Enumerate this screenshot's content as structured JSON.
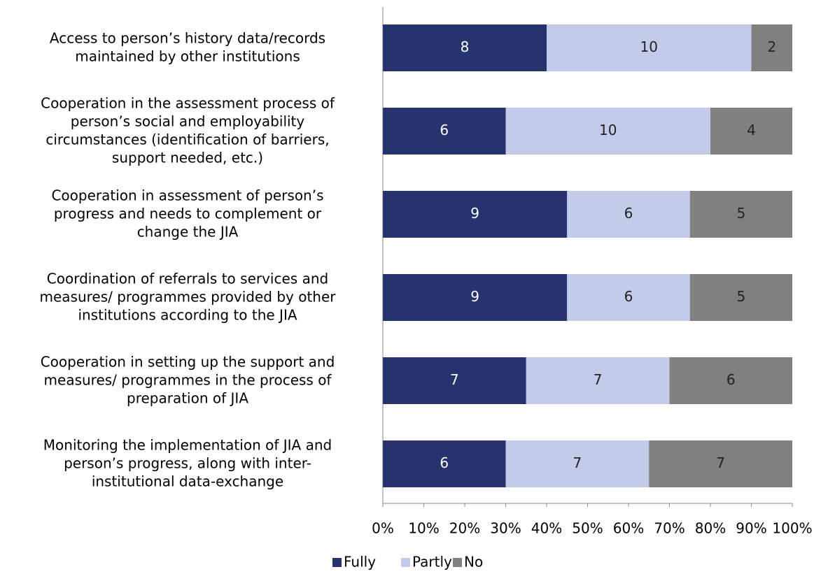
{
  "chart_data": {
    "type": "bar",
    "orientation": "horizontal",
    "stacked": "percent",
    "categories": [
      "Access to person’s history data/records\nmaintained by other institutions",
      "Cooperation in the assessment process of\nperson’s social and employability\ncircumstances (identification of barriers,\nsupport needed, etc.)",
      "Cooperation in assessment of person’s\nprogress and needs to complement or\nchange the JIA",
      "Coordination of referrals to services and\nmeasures/ programmes provided by other\ninstitutions  according to the JIA",
      "Cooperation in setting up the support and\nmeasures/ programmes in the process of\npreparation of JIA",
      "Monitoring the implementation of JIA and\nperson’s progress, along with inter-\ninstitutional data-exchange"
    ],
    "series": [
      {
        "name": "Fully",
        "color": "#27336e",
        "values": [
          8,
          6,
          9,
          9,
          7,
          6
        ]
      },
      {
        "name": "Partly",
        "color": "#c3cbea",
        "values": [
          10,
          10,
          6,
          6,
          7,
          7
        ]
      },
      {
        "name": "No",
        "color": "#808080",
        "values": [
          2,
          4,
          5,
          5,
          6,
          7
        ]
      }
    ],
    "xlim": [
      0,
      100
    ],
    "xticks": [
      {
        "value": 0,
        "label": "0%"
      },
      {
        "value": 10,
        "label": "10%"
      },
      {
        "value": 20,
        "label": "20%"
      },
      {
        "value": 30,
        "label": "30%"
      },
      {
        "value": 40,
        "label": "40%"
      },
      {
        "value": 50,
        "label": "50%"
      },
      {
        "value": 60,
        "label": "60%"
      },
      {
        "value": 70,
        "label": "70%"
      },
      {
        "value": 80,
        "label": "80%"
      },
      {
        "value": 90,
        "label": "90%"
      },
      {
        "value": 100,
        "label": "100%"
      }
    ],
    "grid": false,
    "legend": "bottom"
  }
}
